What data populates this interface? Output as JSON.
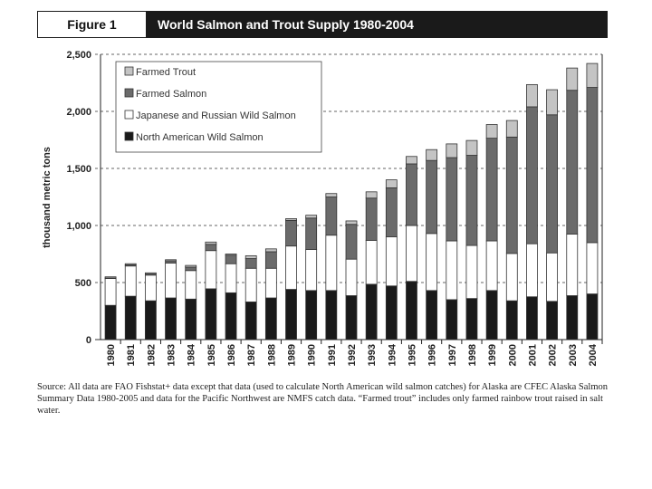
{
  "header": {
    "figure_label": "Figure 1",
    "title": "World Salmon and Trout Supply 1980-2004"
  },
  "chart_data": {
    "type": "bar",
    "stacked": true,
    "title": "World Salmon and Trout Supply 1980-2004",
    "xlabel": "",
    "ylabel": "thousand metric tons",
    "ylim": [
      0,
      2500
    ],
    "yticks": [
      0,
      500,
      1000,
      1500,
      2000,
      2500
    ],
    "ytick_labels": [
      "0",
      "500",
      "1,000",
      "1,500",
      "2,000",
      "2,500"
    ],
    "grid": "horizontal dashed",
    "legend_placement": "top-left",
    "categories": [
      "1980",
      "1981",
      "1982",
      "1983",
      "1984",
      "1985",
      "1986",
      "1987",
      "1988",
      "1989",
      "1990",
      "1991",
      "1992",
      "1993",
      "1994",
      "1995",
      "1996",
      "1997",
      "1998",
      "1999",
      "2000",
      "2001",
      "2002",
      "2003",
      "2004"
    ],
    "series": [
      {
        "name": "North American Wild Salmon",
        "color": "#1a1a1a",
        "values": [
          300,
          380,
          340,
          365,
          355,
          445,
          410,
          330,
          365,
          440,
          430,
          430,
          385,
          485,
          470,
          510,
          430,
          350,
          360,
          430,
          340,
          375,
          335,
          385,
          400
        ]
      },
      {
        "name": "Japanese and Russian Wild Salmon",
        "color": "#ffffff",
        "values": [
          235,
          265,
          225,
          305,
          250,
          335,
          255,
          295,
          260,
          380,
          360,
          485,
          320,
          385,
          430,
          490,
          500,
          515,
          465,
          435,
          415,
          465,
          425,
          540,
          450
        ]
      },
      {
        "name": "Farmed Salmon",
        "color": "#6b6b6b",
        "values": [
          5,
          10,
          10,
          20,
          30,
          55,
          75,
          85,
          145,
          225,
          275,
          335,
          305,
          370,
          430,
          540,
          640,
          730,
          790,
          900,
          1020,
          1200,
          1210,
          1260,
          1360
        ]
      },
      {
        "name": "Farmed Trout",
        "color": "#c4c4c4",
        "values": [
          10,
          10,
          10,
          10,
          15,
          20,
          10,
          25,
          25,
          15,
          25,
          30,
          30,
          55,
          70,
          65,
          95,
          120,
          130,
          120,
          145,
          195,
          220,
          195,
          210
        ]
      }
    ],
    "legend_order": [
      "Farmed Trout",
      "Farmed Salmon",
      "Japanese and Russian Wild Salmon",
      "North American Wild Salmon"
    ]
  },
  "source": "Source: All data are FAO Fishstat+ data except that data (used to calculate North American wild salmon catches) for Alaska are CFEC Alaska Salmon Summary Data 1980-2005 and data for the Pacific Northwest are NMFS catch data. “Farmed trout” includes only farmed rainbow trout raised in salt water."
}
